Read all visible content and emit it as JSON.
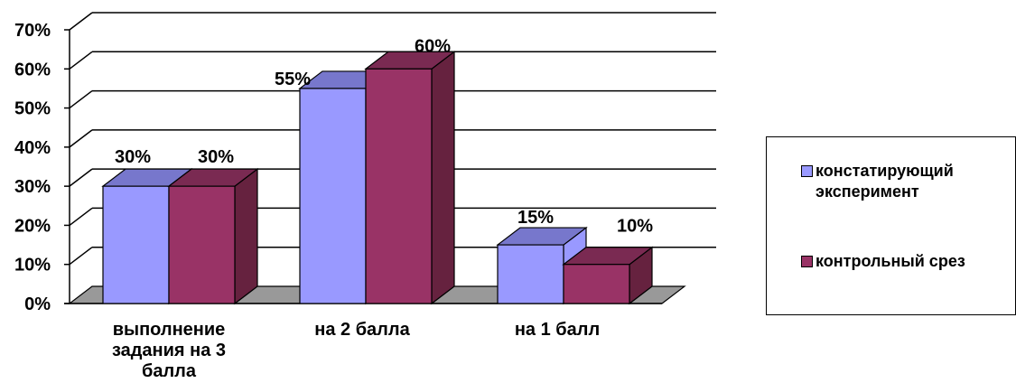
{
  "chart_data": {
    "type": "bar",
    "categories": [
      "выполнение задания на 3 балла",
      "на 2 балла",
      "на 1 балл"
    ],
    "category_lines": [
      [
        "выполнение",
        "задания на 3",
        "балла"
      ],
      [
        "на 2 балла"
      ],
      [
        "на 1 балл"
      ]
    ],
    "series": [
      {
        "name": "констатирующий эксперимент",
        "name_lines": [
          "констатирующий",
          "эксперимент"
        ],
        "values": [
          30,
          55,
          15
        ],
        "labels": [
          "30%",
          "55%",
          "15%"
        ],
        "color": "#9999ff"
      },
      {
        "name": "контрольный срез",
        "name_lines": [
          "контрольный срез"
        ],
        "values": [
          30,
          60,
          10
        ],
        "labels": [
          "30%",
          "60%",
          "10%"
        ],
        "color": "#993366"
      }
    ],
    "ylim": [
      0,
      70
    ],
    "yticks": [
      "0%",
      "10%",
      "20%",
      "30%",
      "40%",
      "50%",
      "60%",
      "70%"
    ],
    "grid": true,
    "three_d": true,
    "legend_position": "right"
  },
  "colors": {
    "floor": "#999999",
    "series1_top": "#7777cc",
    "series2_top": "#7a2a52",
    "series2_side": "#66223f"
  }
}
